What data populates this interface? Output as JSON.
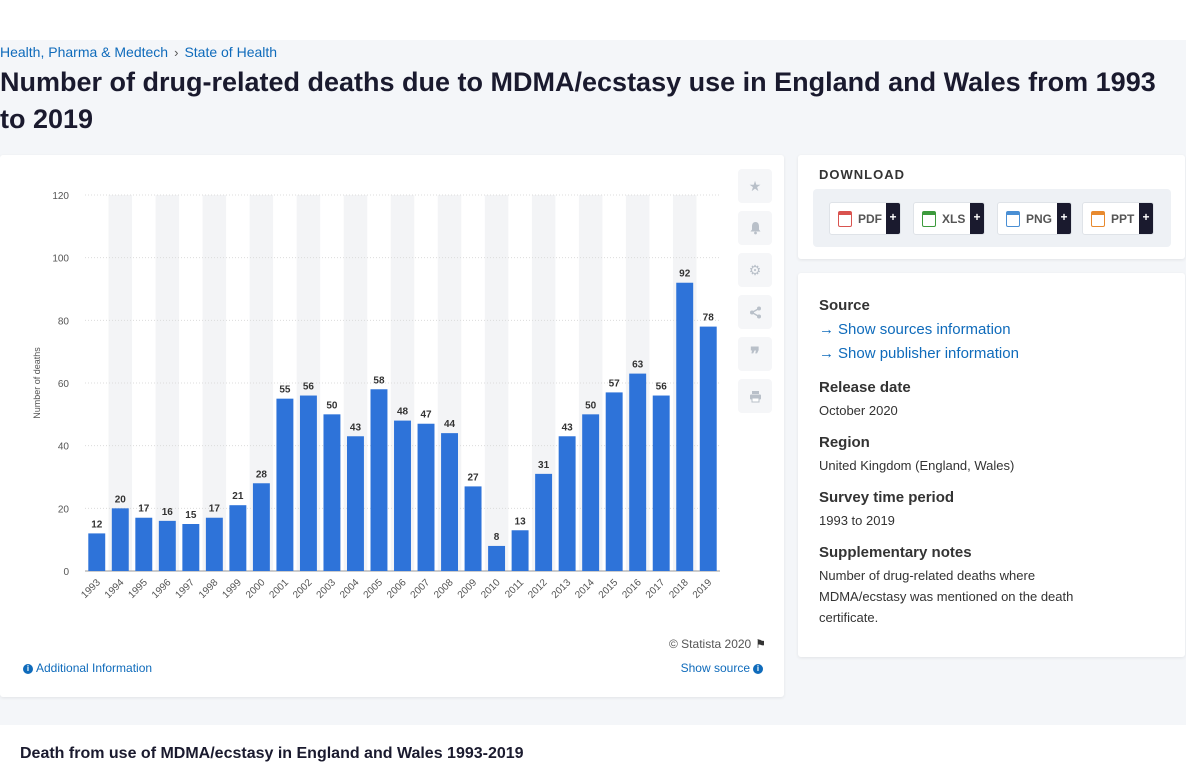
{
  "breadcrumb": {
    "item1": "Health, Pharma & Medtech",
    "item2": "State of Health"
  },
  "page_title": "Number of drug-related deaths due to MDMA/ecstasy use in England and Wales from 1993 to 2019",
  "chart_footer": {
    "copyright": "© Statista 2020",
    "additional_info": "Additional Information",
    "show_source": "Show source"
  },
  "download": {
    "title": "DOWNLOAD",
    "buttons": [
      {
        "label": "PDF",
        "color": "#d9534f"
      },
      {
        "label": "XLS",
        "color": "#3c9a3c"
      },
      {
        "label": "PNG",
        "color": "#4a8fd4"
      },
      {
        "label": "PPT",
        "color": "#e88a2e"
      }
    ],
    "plus": "+"
  },
  "meta": {
    "source_heading": "Source",
    "sources_link": "Show sources information",
    "publisher_link": "Show publisher information",
    "release_heading": "Release date",
    "release_value": "October 2020",
    "region_heading": "Region",
    "region_value": "United Kingdom (England, Wales)",
    "survey_heading": "Survey time period",
    "survey_value": "1993 to 2019",
    "notes_heading": "Supplementary notes",
    "notes_value": "Number of drug-related deaths where MDMA/ecstasy was mentioned on the death certificate."
  },
  "bottom_title": "Death from use of MDMA/ecstasy in England and Wales 1993-2019",
  "colors": {
    "bar": "#2e73d9",
    "link": "#0f6bbb",
    "band": "#f3f4f6"
  },
  "tools": [
    "star-icon",
    "bell-icon",
    "gear-icon",
    "share-icon",
    "quote-icon",
    "print-icon"
  ],
  "chart_data": {
    "type": "bar",
    "categories": [
      "1993",
      "1994",
      "1995",
      "1996",
      "1997",
      "1998",
      "1999",
      "2000",
      "2001",
      "2002",
      "2003",
      "2004",
      "2005",
      "2006",
      "2007",
      "2008",
      "2009",
      "2010",
      "2011",
      "2012",
      "2013",
      "2014",
      "2015",
      "2016",
      "2017",
      "2018",
      "2019"
    ],
    "values": [
      12,
      20,
      17,
      16,
      15,
      17,
      21,
      28,
      55,
      56,
      50,
      43,
      58,
      48,
      47,
      44,
      27,
      8,
      13,
      31,
      43,
      50,
      57,
      63,
      56,
      92,
      78
    ],
    "ylabel": "Number of deaths",
    "ylim": [
      0,
      120
    ],
    "yticks": [
      0,
      20,
      40,
      60,
      80,
      100,
      120
    ],
    "grid": true
  }
}
